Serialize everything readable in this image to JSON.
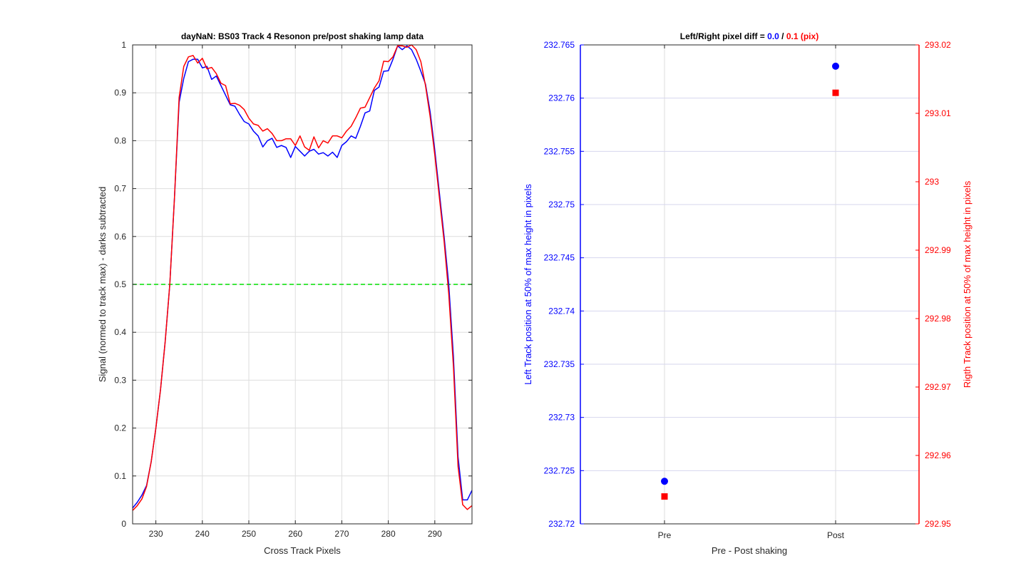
{
  "chart_data": [
    {
      "type": "line",
      "title": "dayNaN: BS03  Track 4 Resonon pre/post shaking lamp data",
      "xlabel": "Cross Track Pixels",
      "ylabel": "Signal (normed to track max) - darks subtracted",
      "xlim": [
        225,
        298
      ],
      "ylim": [
        0,
        1
      ],
      "xticks": [
        230,
        240,
        250,
        260,
        270,
        280,
        290
      ],
      "yticks": [
        0,
        0.1,
        0.2,
        0.3,
        0.4,
        0.5,
        0.6,
        0.7,
        0.8,
        0.9,
        1
      ],
      "ytick_labels": [
        "0",
        "0.1",
        "0.2",
        "0.3",
        "0.4",
        "0.5",
        "0.6",
        "0.7",
        "0.8",
        "0.9",
        "1"
      ],
      "grid": true,
      "x": [
        225,
        226,
        227,
        228,
        229,
        230,
        231,
        232,
        233,
        234,
        235,
        236,
        237,
        238,
        239,
        240,
        241,
        242,
        243,
        244,
        245,
        246,
        247,
        248,
        249,
        250,
        251,
        252,
        253,
        254,
        255,
        256,
        257,
        258,
        259,
        260,
        261,
        262,
        263,
        264,
        265,
        266,
        267,
        268,
        269,
        270,
        271,
        272,
        273,
        274,
        275,
        276,
        277,
        278,
        279,
        280,
        281,
        282,
        283,
        284,
        285,
        286,
        287,
        288,
        289,
        290,
        291,
        292,
        293,
        294,
        295,
        296,
        297,
        298
      ],
      "series": [
        {
          "color": "#0000ff",
          "values": [
            0.033,
            0.045,
            0.06,
            0.08,
            0.13,
            0.2,
            0.28,
            0.38,
            0.5,
            0.68,
            0.88,
            0.93,
            0.965,
            0.97,
            0.97,
            0.952,
            0.955,
            0.928,
            0.935,
            0.915,
            0.895,
            0.875,
            0.872,
            0.855,
            0.84,
            0.835,
            0.82,
            0.81,
            0.787,
            0.8,
            0.805,
            0.786,
            0.79,
            0.786,
            0.765,
            0.788,
            0.778,
            0.768,
            0.778,
            0.782,
            0.772,
            0.775,
            0.768,
            0.776,
            0.765,
            0.79,
            0.798,
            0.81,
            0.805,
            0.83,
            0.858,
            0.862,
            0.905,
            0.912,
            0.945,
            0.946,
            0.97,
            0.998,
            0.99,
            0.998,
            0.99,
            0.97,
            0.945,
            0.918,
            0.86,
            0.78,
            0.69,
            0.6,
            0.5,
            0.35,
            0.14,
            0.05,
            0.05,
            0.07
          ]
        },
        {
          "color": "#ff0000",
          "values": [
            0.028,
            0.038,
            0.052,
            0.078,
            0.13,
            0.2,
            0.28,
            0.38,
            0.5,
            0.68,
            0.89,
            0.955,
            0.975,
            0.978,
            0.962,
            0.972,
            0.95,
            0.953,
            0.94,
            0.92,
            0.915,
            0.877,
            0.878,
            0.874,
            0.865,
            0.847,
            0.835,
            0.832,
            0.82,
            0.825,
            0.815,
            0.8,
            0.8,
            0.804,
            0.804,
            0.79,
            0.81,
            0.787,
            0.78,
            0.808,
            0.785,
            0.8,
            0.795,
            0.81,
            0.81,
            0.806,
            0.82,
            0.83,
            0.848,
            0.868,
            0.87,
            0.89,
            0.91,
            0.925,
            0.966,
            0.965,
            0.975,
            0.998,
            0.998,
            0.995,
            1.0,
            0.99,
            0.965,
            0.915,
            0.85,
            0.77,
            0.68,
            0.59,
            0.48,
            0.33,
            0.12,
            0.04,
            0.03,
            0.038
          ]
        }
      ],
      "reference_line": {
        "y": 0.5,
        "color": "#00dd00",
        "style": "dashed"
      }
    },
    {
      "type": "scatter",
      "title": {
        "prefix": "Left/Right pixel diff = ",
        "left_value": "0.0",
        "separator": " / ",
        "right_value": "0.1 (pix)"
      },
      "xlabel": "Pre - Post shaking",
      "categories": [
        "Pre",
        "Post"
      ],
      "grid": true,
      "left_axis": {
        "label": "Left Track position at 50% of max height in pixels",
        "color": "#0000ff",
        "ylim": [
          232.72,
          232.765
        ],
        "yticks": [
          232.72,
          232.725,
          232.73,
          232.735,
          232.74,
          232.745,
          232.75,
          232.755,
          232.76,
          232.765
        ],
        "ytick_labels": [
          "232.72",
          "232.725",
          "232.73",
          "232.735",
          "232.74",
          "232.745",
          "232.75",
          "232.755",
          "232.76",
          "232.765"
        ],
        "values": [
          232.724,
          232.763
        ],
        "marker": "circle"
      },
      "right_axis": {
        "label": "Rigth Track position at 50% of max height in pixels",
        "color": "#ff0000",
        "ylim": [
          292.95,
          293.02
        ],
        "yticks": [
          292.95,
          292.96,
          292.97,
          292.98,
          292.99,
          293,
          293.01,
          293.02
        ],
        "ytick_labels": [
          "292.95",
          "292.96",
          "292.97",
          "292.98",
          "292.99",
          "293",
          "293.01",
          "293.02"
        ],
        "values": [
          292.954,
          293.013
        ],
        "marker": "square"
      }
    }
  ]
}
